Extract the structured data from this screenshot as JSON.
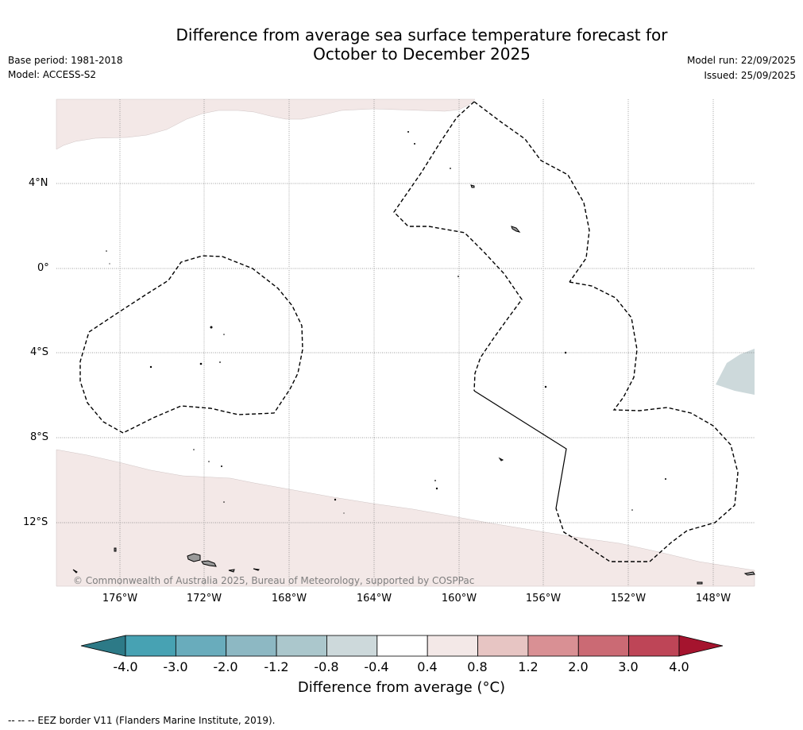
{
  "title": {
    "line1": "Difference from average sea surface temperature forecast for",
    "line2": "October to December 2025"
  },
  "meta": {
    "base_period": "Base period: 1981-2018",
    "model": "Model: ACCESS-S2",
    "model_run": "Model run: 22/09/2025",
    "issued": "Issued: 25/09/2025"
  },
  "map": {
    "lat_labels": [
      "4°N",
      "0°",
      "4°S",
      "8°S",
      "12°S"
    ],
    "lon_labels": [
      "176°W",
      "172°W",
      "168°W",
      "164°W",
      "160°W",
      "156°W",
      "152°W",
      "148°W"
    ],
    "copyright": "© Commonwealth of Australia 2025, Bureau of Meteorology, supported by COSPPac",
    "colors": {
      "land": "#999999",
      "anomaly_0_4_to_0_8": "#f3e8e7",
      "anomaly_neg_0_8_to_neg_0_4": "#cdd9db",
      "grid": "#7f7f7f"
    }
  },
  "colorbar": {
    "ticks": [
      "-4.0",
      "-3.0",
      "-2.0",
      "-1.2",
      "-0.8",
      "-0.4",
      "0.4",
      "0.8",
      "1.2",
      "2.0",
      "3.0",
      "4.0"
    ],
    "colors": [
      "#47a2b3",
      "#69acbc",
      "#8db8c3",
      "#abc7cc",
      "#cdd9db",
      "#ffffff",
      "#f3e8e7",
      "#e7c5c3",
      "#d99094",
      "#cb6a74",
      "#be4557"
    ],
    "under_color": "#2d7a87",
    "over_color": "#a5142e",
    "label": "Difference from average (°C)"
  },
  "footer": "--  --  -- EEZ border V11 (Flanders Marine Institute, 2019)."
}
